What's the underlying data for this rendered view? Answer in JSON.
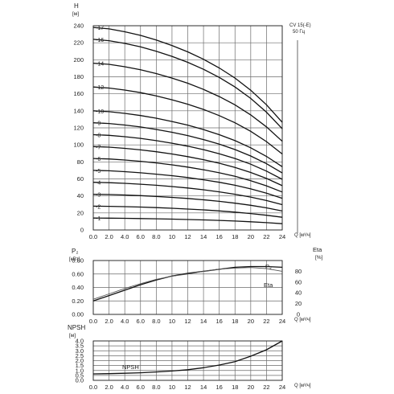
{
  "chart_data": [
    {
      "type": "line",
      "panel": "head",
      "ylabel": "H",
      "yunit": "[м]",
      "xlabel": "Q [м³/ч]",
      "annotation": [
        "CV 15(-E)",
        "50 Гц"
      ],
      "ylim": [
        0,
        240
      ],
      "yticks": [
        0,
        20,
        40,
        60,
        80,
        100,
        120,
        140,
        160,
        180,
        200,
        220,
        240
      ],
      "x_tick_labels": [
        "0.0",
        "2.0",
        "4.0",
        "6.0",
        "8.0",
        "10",
        "12",
        "14",
        "16",
        "18",
        "20",
        "22",
        "24"
      ],
      "xlim": [
        0,
        24
      ],
      "x": [
        0,
        2,
        4,
        6,
        8,
        10,
        12,
        14,
        16,
        18,
        20,
        22,
        24
      ],
      "series": [
        {
          "name": "-1",
          "values": [
            14,
            13.9,
            13.7,
            13.4,
            13.1,
            12.8,
            12.3,
            11.8,
            11.2,
            10.5,
            9.6,
            8.6,
            7.4
          ]
        },
        {
          "name": "-2",
          "values": [
            28,
            27.8,
            27.4,
            26.9,
            26.3,
            25.5,
            24.6,
            23.6,
            22.4,
            21,
            19.3,
            17.3,
            14.9
          ]
        },
        {
          "name": "-3",
          "values": [
            42,
            41.7,
            41.1,
            40.3,
            39.4,
            38.3,
            37,
            35.4,
            33.6,
            31.5,
            29,
            26,
            22.3
          ]
        },
        {
          "name": "-4",
          "values": [
            56,
            55.6,
            54.8,
            53.8,
            52.5,
            51,
            49.3,
            47.2,
            44.8,
            42,
            38.6,
            34.6,
            29.8
          ]
        },
        {
          "name": "-5",
          "values": [
            70,
            69.5,
            68.5,
            67.2,
            65.6,
            63.8,
            61.6,
            59,
            56,
            52.5,
            48.3,
            43.3,
            37.2
          ]
        },
        {
          "name": "-6",
          "values": [
            84,
            83.4,
            82.2,
            80.7,
            78.8,
            76.5,
            73.9,
            70.8,
            67.2,
            63,
            57.9,
            51.9,
            44.6
          ]
        },
        {
          "name": "-7",
          "values": [
            98,
            97.3,
            95.9,
            94.1,
            91.9,
            89.3,
            86.2,
            82.6,
            78.4,
            73.5,
            67.6,
            60.6,
            52.1
          ]
        },
        {
          "name": "-8",
          "values": [
            112,
            111.2,
            109.6,
            107.6,
            105,
            102,
            98.5,
            94.4,
            89.6,
            84,
            77.3,
            69.2,
            59.5
          ]
        },
        {
          "name": "-9",
          "values": [
            126,
            125.1,
            123.3,
            121,
            118.1,
            114.8,
            110.9,
            106.2,
            100.8,
            94.5,
            86.9,
            77.9,
            67
          ]
        },
        {
          "name": "-10",
          "values": [
            140,
            139,
            137,
            134.5,
            131.3,
            127.5,
            123.2,
            118,
            112,
            105,
            96.6,
            86.5,
            74.4
          ]
        },
        {
          "name": "-12",
          "values": [
            168,
            166.8,
            164.4,
            161.4,
            157.5,
            153,
            147.8,
            141.6,
            134.4,
            126,
            115.9,
            103.8,
            89.3
          ]
        },
        {
          "name": "-14",
          "values": [
            196,
            194.6,
            191.8,
            188.3,
            183.8,
            178.5,
            172.4,
            165.2,
            156.8,
            147,
            135.2,
            121.1,
            104.2
          ]
        },
        {
          "name": "-16",
          "values": [
            224,
            222.4,
            219.2,
            215.2,
            210,
            204,
            197,
            188.8,
            179.2,
            168,
            154.6,
            138.4,
            119
          ]
        },
        {
          "name": "-17",
          "values": [
            238,
            236.3,
            232.9,
            228.7,
            223.2,
            216.8,
            209.3,
            200.6,
            190.4,
            178.5,
            164.2,
            147.1,
            126.5
          ]
        }
      ]
    },
    {
      "type": "line",
      "panel": "power-efficiency",
      "ylabel": "P₂",
      "yunit": "[кВт]",
      "y2label": "Eta",
      "y2unit": "[%]",
      "xlabel": "Q [м³/ч]",
      "ylim": [
        0,
        0.8
      ],
      "yticks": [
        "0.00",
        "0.20",
        "0.40",
        "0.60",
        "0.80"
      ],
      "y2lim": [
        0,
        100
      ],
      "y2ticks": [
        "0",
        "20",
        "40",
        "60",
        "80"
      ],
      "x_tick_labels": [
        "0.0",
        "2.0",
        "4.0",
        "6.0",
        "8.0",
        "10",
        "12",
        "14",
        "16",
        "18",
        "20",
        "22",
        "24"
      ],
      "xlim": [
        0,
        24
      ],
      "x": [
        0,
        2,
        4,
        6,
        8,
        10,
        12,
        14,
        16,
        18,
        20,
        22,
        24
      ],
      "series": [
        {
          "name": "P₂",
          "axis": "left",
          "values": [
            0.2,
            0.28,
            0.36,
            0.44,
            0.51,
            0.57,
            0.61,
            0.64,
            0.67,
            0.7,
            0.71,
            0.71,
            0.7
          ]
        },
        {
          "name": "Eta",
          "axis": "right",
          "values": [
            28,
            38,
            48,
            57,
            65,
            71,
            75,
            80,
            84,
            86,
            87,
            85,
            80
          ]
        }
      ]
    },
    {
      "type": "line",
      "panel": "npsh",
      "ylabel": "NPSH",
      "yunit": "[м]",
      "xlabel": "Q [м³/ч]",
      "ylim": [
        0,
        4
      ],
      "yticks": [
        "0.0",
        "0.5",
        "1.0",
        "1.5",
        "2.0",
        "2.5",
        "3.0",
        "3.5",
        "4.0"
      ],
      "x_tick_labels": [
        "0.0",
        "2.0",
        "4.0",
        "6.0",
        "8.0",
        "10",
        "12",
        "14",
        "16",
        "18",
        "20",
        "22",
        "24"
      ],
      "xlim": [
        0,
        24
      ],
      "x": [
        0,
        2,
        4,
        6,
        8,
        10,
        12,
        14,
        16,
        18,
        20,
        22,
        24
      ],
      "series": [
        {
          "name": "NPSH",
          "values": [
            0.65,
            0.68,
            0.72,
            0.77,
            0.85,
            0.95,
            1.08,
            1.28,
            1.55,
            1.9,
            2.45,
            3.1,
            4.0
          ]
        }
      ]
    }
  ]
}
